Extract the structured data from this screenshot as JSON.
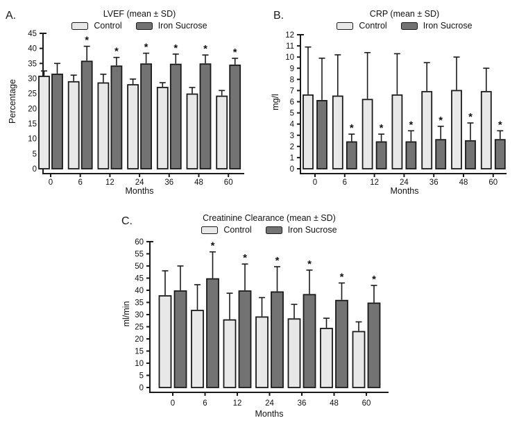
{
  "colors": {
    "background": "#ffffff",
    "axis_stroke": "#1a1a1a",
    "control_fill": "#e8e8e8",
    "iron_sucrose_fill": "#737373"
  },
  "significance_marker": "*",
  "chart_data": [
    {
      "id": "A",
      "type": "bar",
      "panel_label": "A.",
      "title": "LVEF (mean ± SD)",
      "xlabel": "Months",
      "ylabel": "Percentage",
      "ylim": [
        0,
        45
      ],
      "ytick_step": 5,
      "grid": false,
      "legend_position": "top",
      "error_bars": "upper-sd",
      "categories": [
        "0",
        "6",
        "12",
        "24",
        "36",
        "48",
        "60"
      ],
      "series": [
        {
          "name": "Control",
          "fill": "#e8e8e8",
          "values": [
            30.7,
            28.9,
            28.5,
            27.9,
            27.0,
            24.8,
            24.1
          ],
          "sd": [
            1.8,
            2.2,
            2.9,
            1.9,
            1.6,
            2.2,
            1.9
          ],
          "significant": [
            false,
            false,
            false,
            false,
            false,
            false,
            false
          ]
        },
        {
          "name": "Iron Sucrose",
          "fill": "#737373",
          "values": [
            31.4,
            35.7,
            34.1,
            34.8,
            34.7,
            34.8,
            34.4
          ],
          "sd": [
            3.6,
            5.0,
            2.9,
            3.6,
            3.4,
            3.0,
            2.3
          ],
          "significant": [
            false,
            true,
            true,
            true,
            true,
            true,
            true
          ]
        }
      ]
    },
    {
      "id": "B",
      "type": "bar",
      "panel_label": "B.",
      "title": "CRP (mean ± SD)",
      "xlabel": "Months",
      "ylabel": "mg/l",
      "ylim": [
        0,
        12
      ],
      "ytick_step": 1,
      "grid": false,
      "legend_position": "top",
      "error_bars": "upper-sd",
      "categories": [
        "0",
        "6",
        "12",
        "24",
        "36",
        "48",
        "60"
      ],
      "series": [
        {
          "name": "Control",
          "fill": "#e8e8e8",
          "values": [
            6.6,
            6.5,
            6.2,
            6.6,
            6.9,
            7.0,
            6.9
          ],
          "sd": [
            4.3,
            3.7,
            4.2,
            3.7,
            2.6,
            3.0,
            2.1
          ],
          "significant": [
            false,
            false,
            false,
            false,
            false,
            false,
            false
          ]
        },
        {
          "name": "Iron Sucrose",
          "fill": "#737373",
          "values": [
            6.1,
            2.4,
            2.4,
            2.4,
            2.6,
            2.5,
            2.6
          ],
          "sd": [
            3.8,
            0.7,
            0.7,
            1.0,
            1.2,
            1.6,
            0.8
          ],
          "significant": [
            false,
            true,
            true,
            true,
            true,
            true,
            true
          ]
        }
      ]
    },
    {
      "id": "C",
      "type": "bar",
      "panel_label": "C.",
      "title": "Creatinine Clearance (mean ± SD)",
      "xlabel": "Months",
      "ylabel": "ml/min",
      "ylim": [
        0,
        60
      ],
      "ytick_step": 5,
      "grid": false,
      "legend_position": "top",
      "error_bars": "upper-sd",
      "categories": [
        "0",
        "6",
        "12",
        "24",
        "36",
        "48",
        "60"
      ],
      "series": [
        {
          "name": "Control",
          "fill": "#e8e8e8",
          "values": [
            37.7,
            31.7,
            27.8,
            29.0,
            28.2,
            24.3,
            23.0
          ],
          "sd": [
            10.3,
            10.6,
            11.0,
            8.0,
            6.0,
            4.2,
            4.0
          ],
          "significant": [
            false,
            false,
            false,
            false,
            false,
            false,
            false
          ]
        },
        {
          "name": "Iron Sucrose",
          "fill": "#737373",
          "values": [
            39.7,
            44.7,
            39.7,
            39.3,
            38.2,
            35.8,
            34.7
          ],
          "sd": [
            10.3,
            11.1,
            11.1,
            10.4,
            10.1,
            7.2,
            7.3
          ],
          "significant": [
            false,
            true,
            true,
            true,
            true,
            true,
            true
          ]
        }
      ]
    }
  ]
}
